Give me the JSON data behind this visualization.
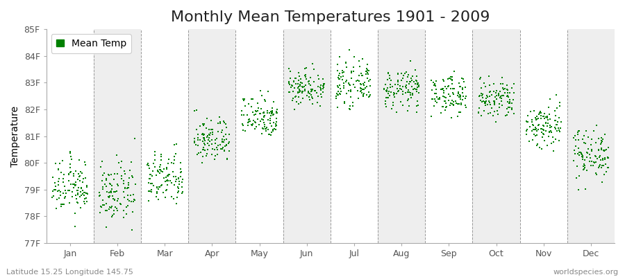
{
  "title": "Monthly Mean Temperatures 1901 - 2009",
  "ylabel": "Temperature",
  "xlabel_labels": [
    "Jan",
    "Feb",
    "Mar",
    "Apr",
    "May",
    "Jun",
    "Jul",
    "Aug",
    "Sep",
    "Oct",
    "Nov",
    "Dec"
  ],
  "ytick_labels": [
    "77F",
    "78F",
    "79F",
    "80F",
    "81F",
    "82F",
    "83F",
    "84F",
    "85F"
  ],
  "ytick_values": [
    77,
    78,
    79,
    80,
    81,
    82,
    83,
    84,
    85
  ],
  "ylim": [
    77,
    85
  ],
  "legend_label": "Mean Temp",
  "dot_color": "#008000",
  "bg_color": "#ffffff",
  "plot_bg_color": "#ffffff",
  "alt_band_color": "#eeeeee",
  "footer_left": "Latitude 15.25 Longitude 145.75",
  "footer_right": "worldspecies.org",
  "monthly_means": [
    79.1,
    78.85,
    79.4,
    80.85,
    81.75,
    82.85,
    82.95,
    82.75,
    82.55,
    82.35,
    81.4,
    80.35
  ],
  "monthly_stds": [
    0.5,
    0.55,
    0.5,
    0.42,
    0.4,
    0.35,
    0.38,
    0.36,
    0.36,
    0.4,
    0.45,
    0.48
  ],
  "monthly_ranges": [
    [
      77.1,
      81.3
    ],
    [
      77.1,
      80.9
    ],
    [
      77.7,
      81.2
    ],
    [
      79.4,
      82.4
    ],
    [
      80.4,
      82.7
    ],
    [
      81.4,
      84.5
    ],
    [
      81.7,
      84.5
    ],
    [
      81.9,
      83.8
    ],
    [
      81.5,
      83.8
    ],
    [
      81.1,
      83.5
    ],
    [
      79.7,
      83.2
    ],
    [
      79.0,
      82.0
    ]
  ],
  "n_years": 109,
  "title_fontsize": 16,
  "axis_fontsize": 10,
  "tick_fontsize": 9,
  "footer_fontsize": 8,
  "dot_size": 3
}
